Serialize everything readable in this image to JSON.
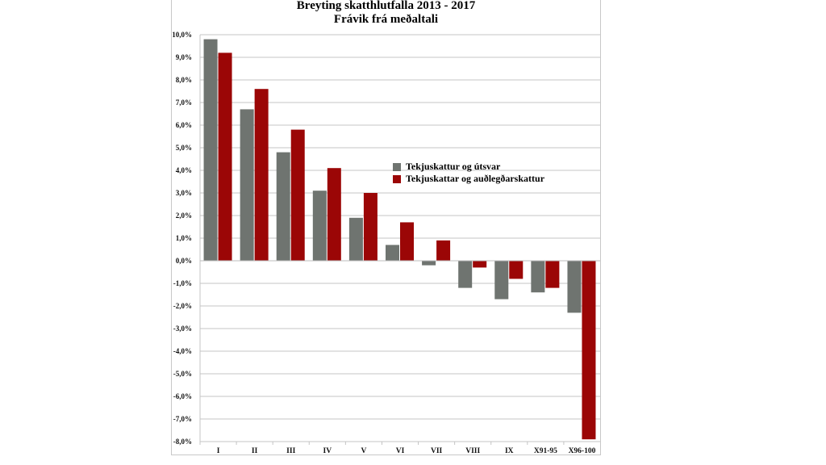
{
  "chart_data": {
    "type": "bar",
    "title": "Breyting skatthlutfalla 2013 - 2017",
    "subtitle": "Frávik frá meðaltali",
    "xlabel": "",
    "ylabel": "",
    "ylim": [
      -8,
      10
    ],
    "yticks": [
      "10,0%",
      "9,0%",
      "8,0%",
      "7,0%",
      "6,0%",
      "5,0%",
      "4,0%",
      "3,0%",
      "2,0%",
      "1,0%",
      "0,0%",
      "-1,0%",
      "-2,0%",
      "-3,0%",
      "-4,0%",
      "-5,0%",
      "-6,0%",
      "-7,0%",
      "-8,0%"
    ],
    "categories": [
      "I",
      "II",
      "III",
      "IV",
      "V",
      "VI",
      "VII",
      "VIII",
      "IX",
      "X91-95",
      "X96-100"
    ],
    "series": [
      {
        "name": "Tekjuskattur og útsvar",
        "color": "#6f7470",
        "values": [
          9.8,
          6.7,
          4.8,
          3.1,
          1.9,
          0.7,
          -0.2,
          -1.2,
          -1.7,
          -1.4,
          -2.3
        ]
      },
      {
        "name": "Tekjuskattar og auðlegðarskattur",
        "color": "#9b0606",
        "values": [
          9.2,
          7.6,
          5.8,
          4.1,
          3.0,
          1.7,
          0.9,
          -0.3,
          -0.8,
          -1.2,
          -7.9
        ]
      }
    ],
    "grid": true,
    "legend_position": "center-right"
  }
}
